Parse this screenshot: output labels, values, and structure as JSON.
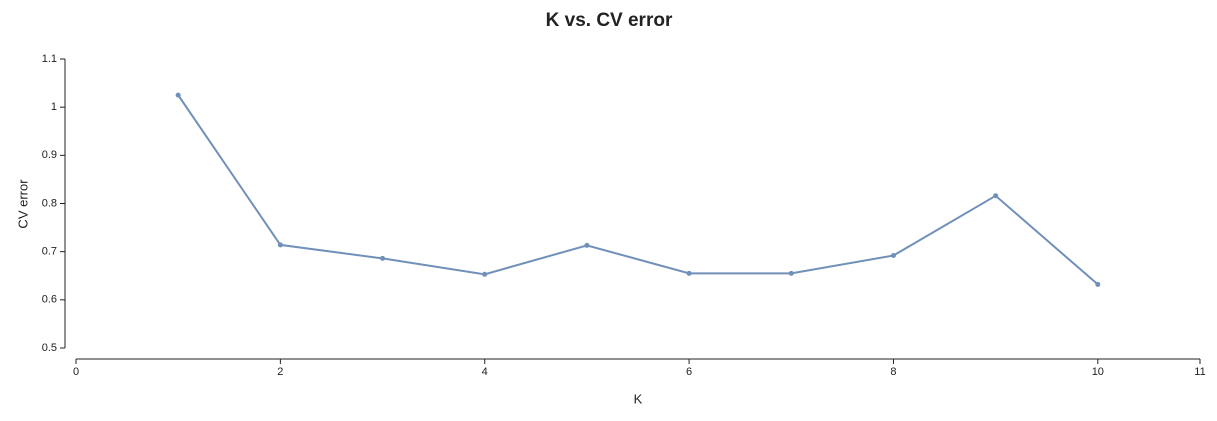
{
  "chart_data": {
    "type": "line",
    "title": "K vs. CV error",
    "x_label": "K",
    "y_label": "CV error",
    "x": [
      1,
      2,
      3,
      4,
      5,
      6,
      7,
      8,
      9,
      10
    ],
    "series": [
      {
        "name": "CV error",
        "color": "#7090b9",
        "values": [
          1.025,
          0.714,
          0.686,
          0.653,
          0.713,
          0.655,
          0.655,
          0.692,
          0.816,
          0.632
        ]
      }
    ],
    "xlim": [
      0,
      11
    ],
    "xticks": [
      0,
      2,
      4,
      6,
      8,
      10,
      11
    ],
    "ylim": [
      0.5,
      1.1
    ],
    "yticks": [
      0.5,
      0.6,
      0.7,
      0.8,
      0.9,
      1,
      1.1
    ]
  }
}
